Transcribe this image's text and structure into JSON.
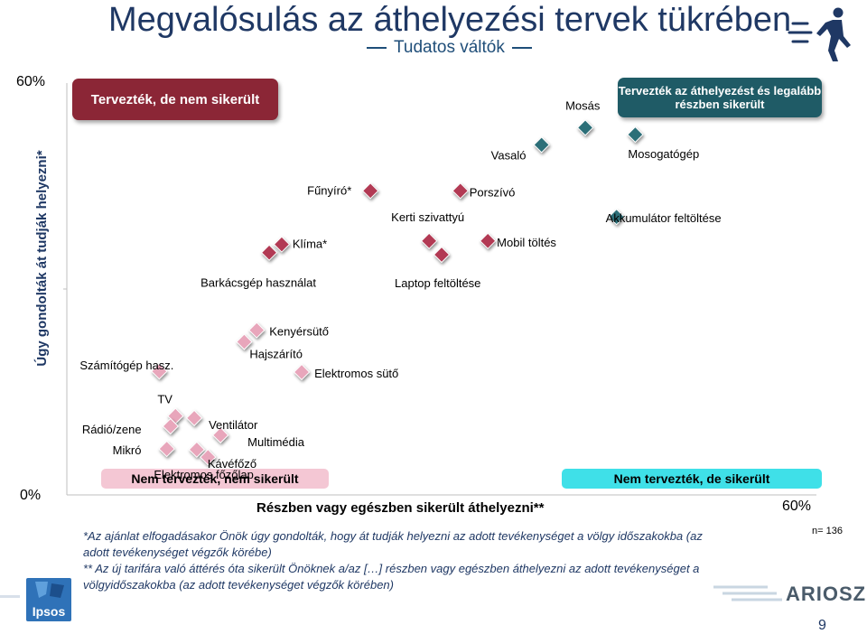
{
  "header": {
    "title": "Megvalósulás az áthelyezési tervek tükrében",
    "subtitle": "Tudatos váltók"
  },
  "quadrants": {
    "top_left": "Tervezték, de nem sikerült",
    "top_right": "Tervezték az áthelyezést és legalább részben sikerült",
    "bottom_left": "Nem tervezték, nem sikerült",
    "bottom_right": "Nem tervezték, de sikerült"
  },
  "footnotes": [
    "*Az ajánlat elfogadásakor Önök úgy gondolták, hogy át tudják helyezni az adott tevékenységet a völgy időszakokba (az adott tevékenységet végzők körébe)",
    "** Az új tarifára való áttérés óta sikerült Önöknek a/az […] részben vagy egészben áthelyezni az adott tevékenységet a völgyidőszakokba (az adott tevékenységet végzők körében)"
  ],
  "sample_size": "n= 136",
  "page_number": "9",
  "logos": {
    "left": "Ipsos",
    "right": "ARIOSZ"
  },
  "colors": {
    "title": "#1f3864",
    "dark_red": "#8b2636",
    "crimson": "#b23a54",
    "pink": "#e8a6bb",
    "teal": "#2c6f78",
    "dark_teal": "#1f5b66",
    "cyan": "#3fe0e8",
    "light_pink": "#f4c7d4"
  },
  "chart_data": {
    "type": "scatter",
    "title": "Megvalósulás az áthelyezési tervek tükrében",
    "xlabel": "Részben vagy egészben sikerült áthelyezni**",
    "ylabel": "Úgy gondolták át tudják helyezni*",
    "xlim": [
      0,
      60
    ],
    "ylim": [
      0,
      60
    ],
    "x_ticks": [
      "60%"
    ],
    "y_ticks": [
      "60%",
      "0%"
    ],
    "points": [
      {
        "label": "Mosás",
        "x": 41.5,
        "y": 53.5,
        "color": "teal"
      },
      {
        "label": "Mosogatógép",
        "x": 45.5,
        "y": 52.5,
        "color": "teal"
      },
      {
        "label": "Vasaló",
        "x": 38.0,
        "y": 51.0,
        "color": "teal"
      },
      {
        "label": "Porszívó",
        "x": 31.5,
        "y": 44.3,
        "color": "crimson"
      },
      {
        "label": "Fűnyíró*",
        "x": 24.3,
        "y": 44.3,
        "color": "crimson"
      },
      {
        "label": "Akkumulátor feltöltése",
        "x": 44.0,
        "y": 40.5,
        "color": "teal"
      },
      {
        "label": "Mobil töltés",
        "x": 33.7,
        "y": 37.0,
        "color": "crimson"
      },
      {
        "label": "Kerti szivattyú",
        "x": 29.0,
        "y": 37.0,
        "color": "crimson"
      },
      {
        "label": "Laptop feltöltése",
        "x": 30.0,
        "y": 35.0,
        "color": "crimson"
      },
      {
        "label": "Klíma*",
        "x": 17.2,
        "y": 36.5,
        "color": "crimson"
      },
      {
        "label": "Barkácsgép használat",
        "x": 16.2,
        "y": 35.3,
        "color": "crimson"
      },
      {
        "label": "Kenyérsütő",
        "x": 15.2,
        "y": 24.0,
        "color": "pink"
      },
      {
        "label": "Hajszárító",
        "x": 14.2,
        "y": 22.3,
        "color": "pink"
      },
      {
        "label": "Számítógép hasz.",
        "x": 7.4,
        "y": 18.0,
        "color": "pink"
      },
      {
        "label": "Elektromos sütő",
        "x": 18.8,
        "y": 17.9,
        "color": "pink"
      },
      {
        "label": "TV",
        "x": 8.7,
        "y": 11.5,
        "color": "pink"
      },
      {
        "label": "Ventilátor",
        "x": 10.2,
        "y": 11.2,
        "color": "pink"
      },
      {
        "label": "Rádió/zene",
        "x": 8.3,
        "y": 10.0,
        "color": "pink"
      },
      {
        "label": "Multimédia",
        "x": 12.3,
        "y": 8.7,
        "color": "pink"
      },
      {
        "label": "Mikró",
        "x": 8.0,
        "y": 6.7,
        "color": "pink"
      },
      {
        "label": "Kávéfőző",
        "x": 10.4,
        "y": 6.6,
        "color": "pink"
      },
      {
        "label": "Elektromos főzőlap",
        "x": 11.3,
        "y": 5.5,
        "color": "pink"
      }
    ]
  }
}
